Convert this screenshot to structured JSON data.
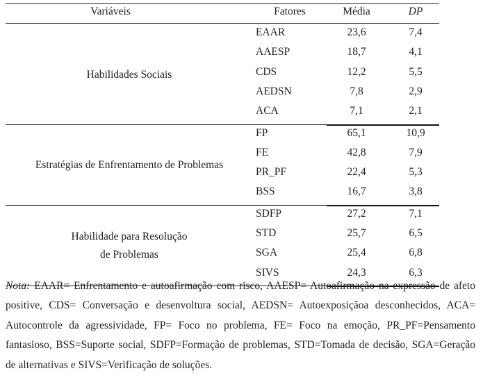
{
  "headers": {
    "variaveis": "Variáveis",
    "fatores": "Fatores",
    "media": "Média",
    "dp": "DP"
  },
  "groups": [
    {
      "label_lines": [
        "Habilidades Sociais"
      ],
      "rows": [
        {
          "fator": "EAAR",
          "media": "23,6",
          "dp": "7,4"
        },
        {
          "fator": "AAESP",
          "media": "18,7",
          "dp": "4,1"
        },
        {
          "fator": "CDS",
          "media": "12,2",
          "dp": "5,5"
        },
        {
          "fator": "AEDSN",
          "media": "7,8",
          "dp": "2,9"
        },
        {
          "fator": "ACA",
          "media": "7,1",
          "dp": "2,1"
        }
      ]
    },
    {
      "label_lines": [
        "Estratégias de Enfrentamento de Problemas"
      ],
      "rows": [
        {
          "fator": "FP",
          "media": "65,1",
          "dp": "10,9"
        },
        {
          "fator": "FE",
          "media": "42,8",
          "dp": "7,9"
        },
        {
          "fator": "PR_PF",
          "media": "22,4",
          "dp": "5,3"
        },
        {
          "fator": "BSS",
          "media": "16,7",
          "dp": "3,8"
        }
      ]
    },
    {
      "label_lines": [
        "Habilidade para Resolução",
        "de Problemas"
      ],
      "rows": [
        {
          "fator": "SDFP",
          "media": "27,2",
          "dp": "7,1"
        },
        {
          "fator": "STD",
          "media": "25,7",
          "dp": "6,5"
        },
        {
          "fator": "SGA",
          "media": "25,4",
          "dp": "6,8"
        },
        {
          "fator": "SIVS",
          "media": "24,3",
          "dp": "6,3"
        }
      ]
    }
  ],
  "note": {
    "label": "Nota:",
    "text": " EAAR= Enfrentamento e autoafirmação com risco, AAESP= Autoafirmação na expressão de afeto positive, CDS= Conversação e desenvoltura social, AEDSN= Autoexposiçãoa desconhecidos, ACA= Autocontrole da agressividade, FP= Foco no problema, FE= Foco na emoção, PR_PF=Pensamento fantasioso, BSS=Suporte social, SDFP=Formação de problemas, STD=Tomada de decisão, SGA=Geração de alternativas e SIVS=Verificação de soluções."
  }
}
